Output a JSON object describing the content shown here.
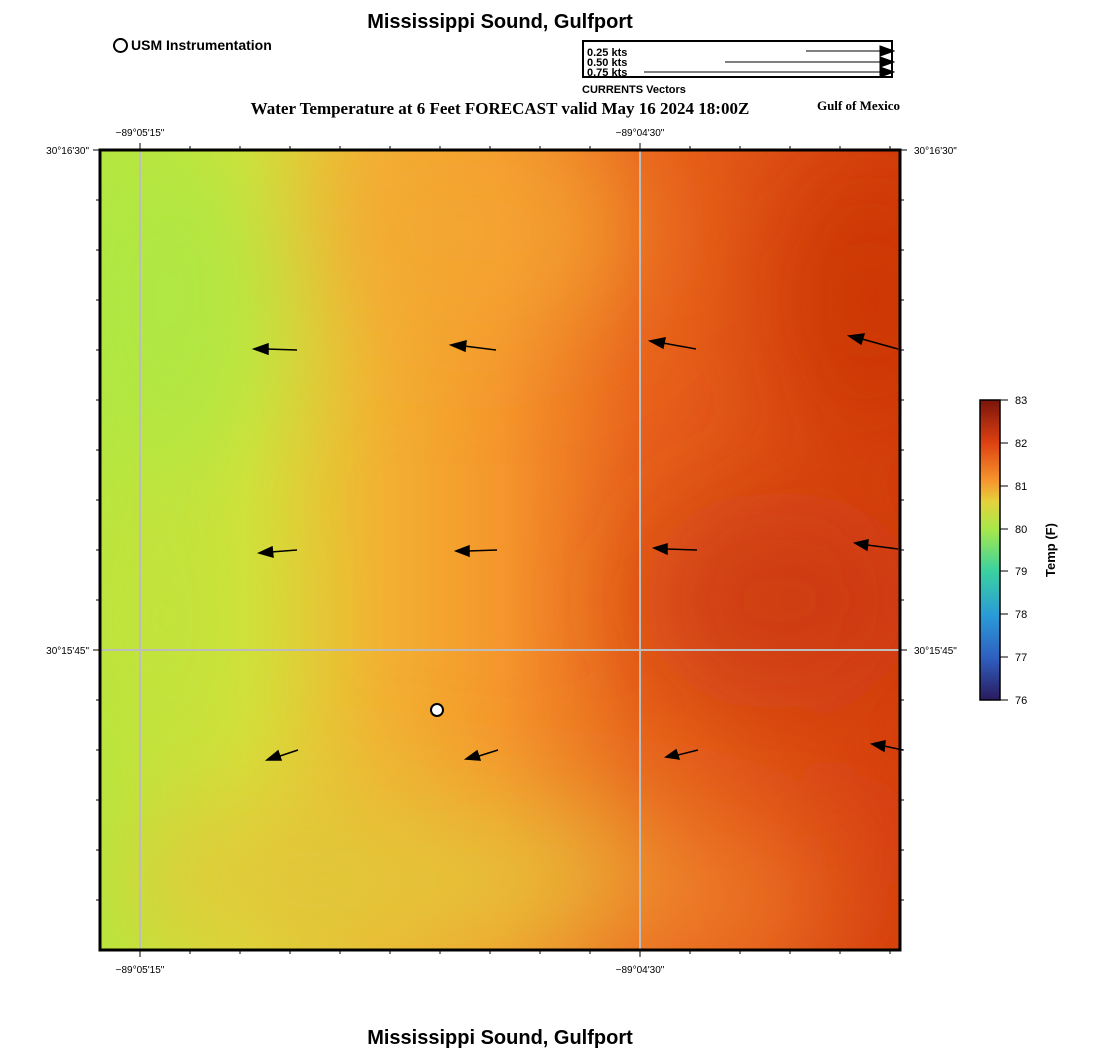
{
  "title": "Mississippi Sound, Gulfport",
  "subtitle": "Water Temperature at 6 Feet FORECAST valid May 16 2024 18:00Z",
  "region_label": "Gulf of Mexico",
  "station_legend": {
    "icon": "circle-icon",
    "label": "USM Instrumentation"
  },
  "vector_legend": {
    "caption": "CURRENTS Vectors",
    "entries": [
      {
        "label": "0.25 kts",
        "speed": 0.25
      },
      {
        "label": "0.50 kts",
        "speed": 0.5
      },
      {
        "label": "0.75 kts",
        "speed": 0.75
      }
    ]
  },
  "map": {
    "x_ticks": [
      "−89°05'15\"",
      "−89°04'30\""
    ],
    "y_ticks": [
      "30°16'30\"",
      "30°15'45\""
    ]
  },
  "colorbar": {
    "title": "Temp (F)",
    "min": 76,
    "max": 83,
    "ticks": [
      "83",
      "82",
      "81",
      "80",
      "79",
      "78",
      "77",
      "76"
    ]
  },
  "colors": {
    "cold": "#2a1a5e",
    "cool": "#2a8ad6",
    "mild": "#3ad2a0",
    "green": "#a8e84a",
    "yellow": "#e4d23c",
    "orange": "#f7962e",
    "red": "#dc4010",
    "deep_red": "#8c1a0e"
  }
}
